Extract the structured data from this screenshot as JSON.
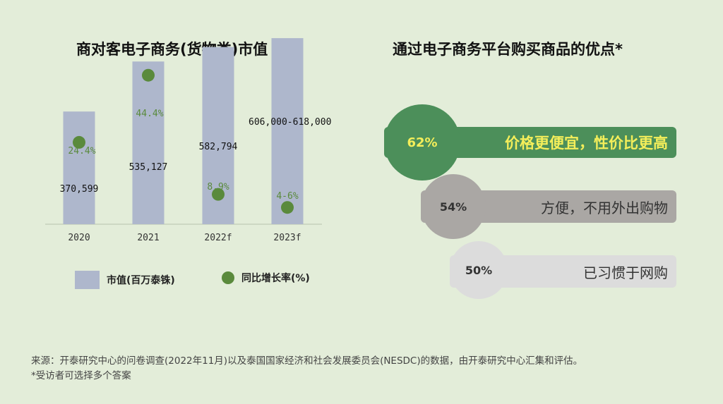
{
  "left_title": "商对客电子商务(货物类)市值",
  "right_title": "通过电子商务平台购买商品的优点*",
  "chart_data": {
    "type": "bar",
    "title": "商对客电子商务(货物类)市值",
    "categories": [
      "2020",
      "2021",
      "2022f",
      "2023f"
    ],
    "series": [
      {
        "name": "市值(百万泰铢)",
        "type": "bar",
        "values": [
          370599,
          535127,
          582794,
          612000
        ],
        "labels": [
          "370,599",
          "535,127",
          "582,794",
          "606,000-618,000"
        ]
      },
      {
        "name": "同比增长率(%)",
        "type": "scatter",
        "values": [
          24.4,
          44.4,
          8.9,
          5
        ],
        "labels": [
          "24.4%",
          "44.4%",
          "8.9%",
          "4-6%"
        ]
      }
    ],
    "bar_ylim": [
      0,
      640000
    ],
    "growth_ylim": [
      0,
      58
    ],
    "colors": {
      "bar": "#aeb7cc",
      "dot": "#5a8a3c",
      "dot_label": "#5a8a3c"
    }
  },
  "legend": {
    "bar_label": "市值(百万泰铢)",
    "dot_label": "同比增长率(%)"
  },
  "advantages": [
    {
      "percent": "62%",
      "label": "价格更便宜，性价比更高",
      "color": "#4c8f5a"
    },
    {
      "percent": "54%",
      "label": "方便，不用外出购物",
      "color": "#aaa7a4"
    },
    {
      "percent": "50%",
      "label": "已习惯于网购",
      "color": "#dcdcdc"
    }
  ],
  "notes": {
    "source": "来源：开泰研究中心的问卷调查(2022年11月)以及泰国国家经济和社会发展委员会(NESDC)的数据，由开泰研究中心汇集和评估。",
    "footnote": "*受访者可选择多个答案"
  }
}
